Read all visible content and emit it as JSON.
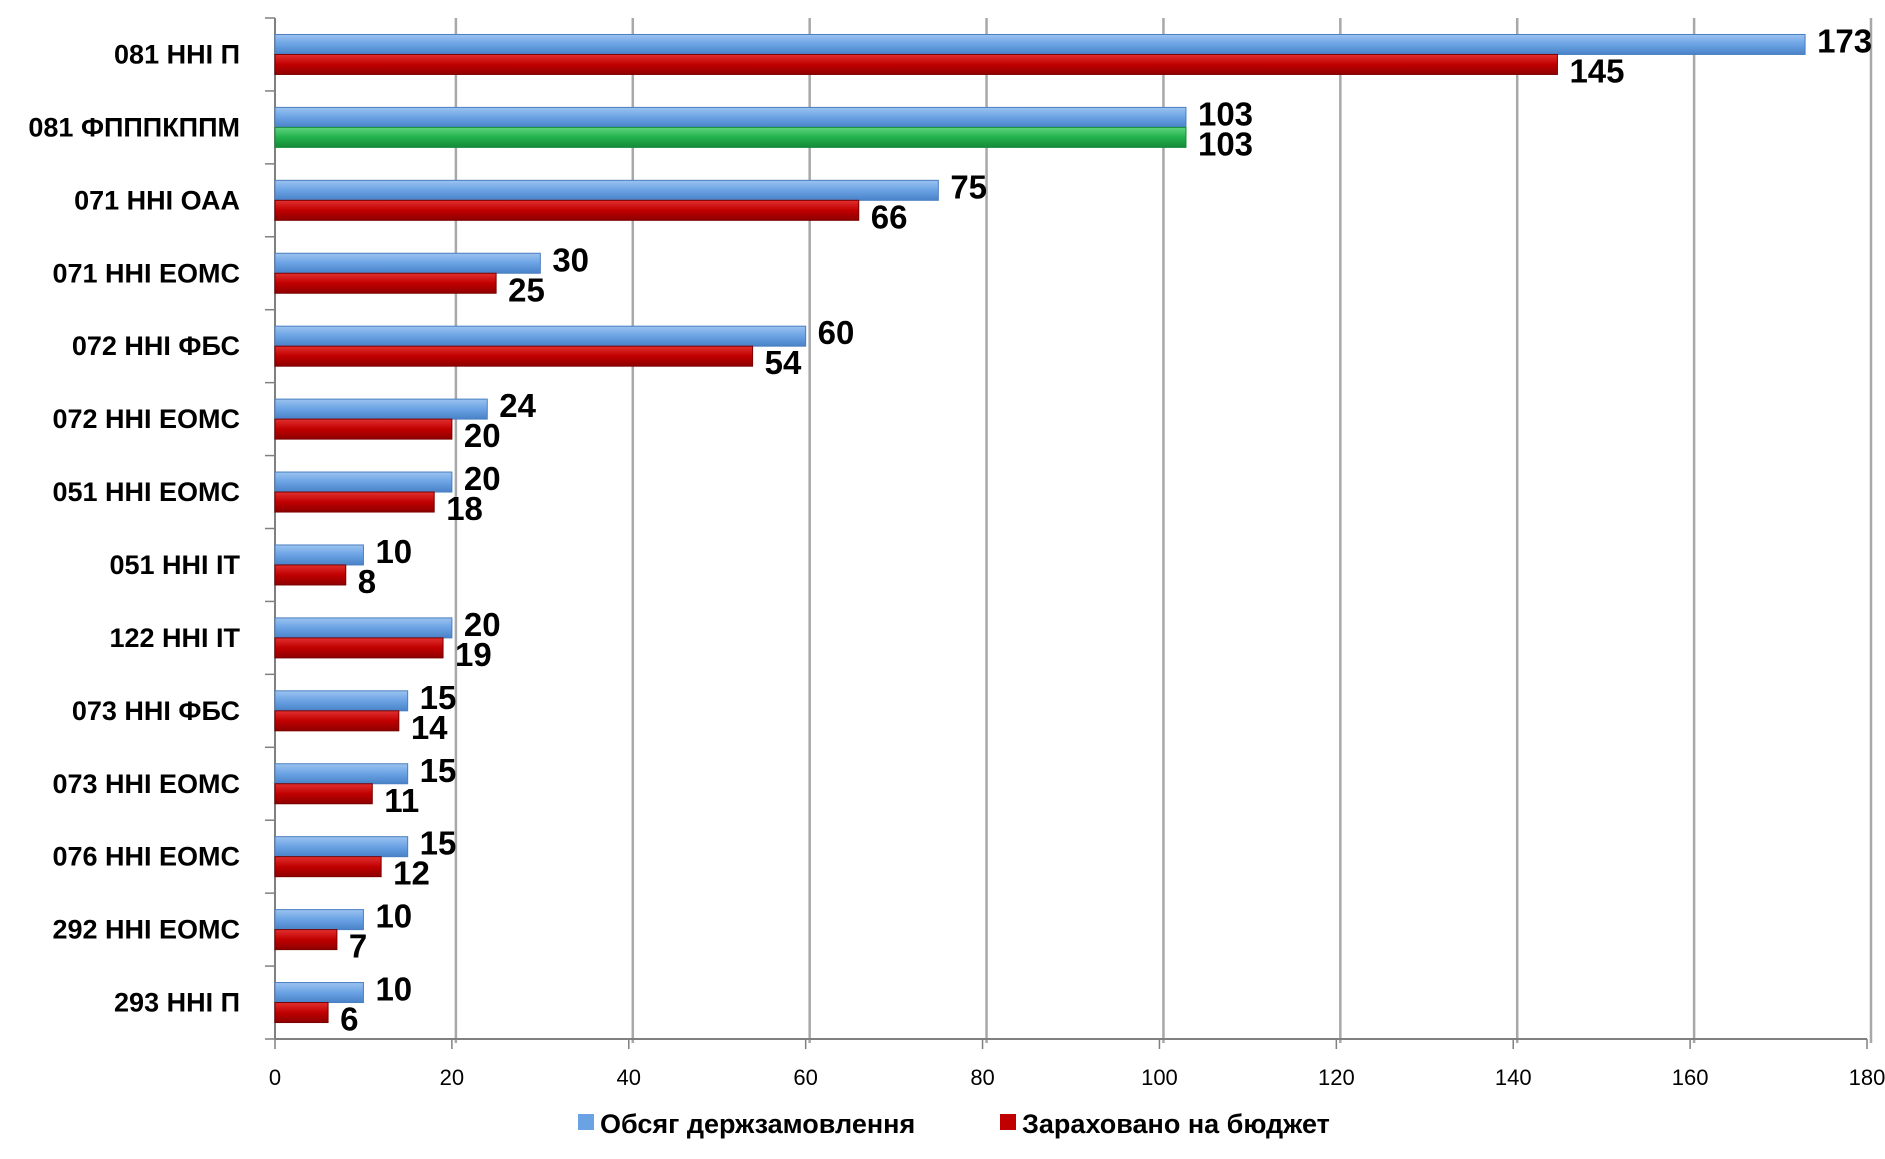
{
  "chart_data": {
    "type": "bar",
    "orientation": "horizontal",
    "categories": [
      "081 ННІ П",
      "081 ФПППКППМ",
      "071 ННІ ОАА",
      "071 ННІ ЕОМС",
      "072 ННІ ФБС",
      "072 ННІ ЕОМС",
      "051 ННІ ЕОМС",
      "051 ННІ ІТ",
      "122 ННІ ІТ",
      "073 ННІ ФБС",
      "073 ННІ ЕОМС",
      "076 ННІ ЕОМС",
      "292 ННІ ЕОМС",
      "293 ННІ П"
    ],
    "series": [
      {
        "name": "Обсяг держзамовлення",
        "color": "#6aa2e4",
        "values": [
          173,
          103,
          75,
          30,
          60,
          24,
          20,
          10,
          20,
          15,
          15,
          15,
          10,
          10
        ]
      },
      {
        "name": "Зараховано на бюджет",
        "color": "#c00000",
        "values": [
          145,
          103,
          66,
          25,
          54,
          20,
          18,
          8,
          19,
          14,
          11,
          12,
          7,
          6
        ],
        "highlight_color": "#22b14c",
        "highlight_index": 1
      }
    ],
    "xlim": [
      0,
      180
    ],
    "x_ticks": [
      0,
      20,
      40,
      60,
      80,
      100,
      120,
      140,
      160,
      180
    ],
    "grid": true,
    "legend_position": "bottom",
    "title": "",
    "xlabel": "",
    "ylabel": ""
  }
}
